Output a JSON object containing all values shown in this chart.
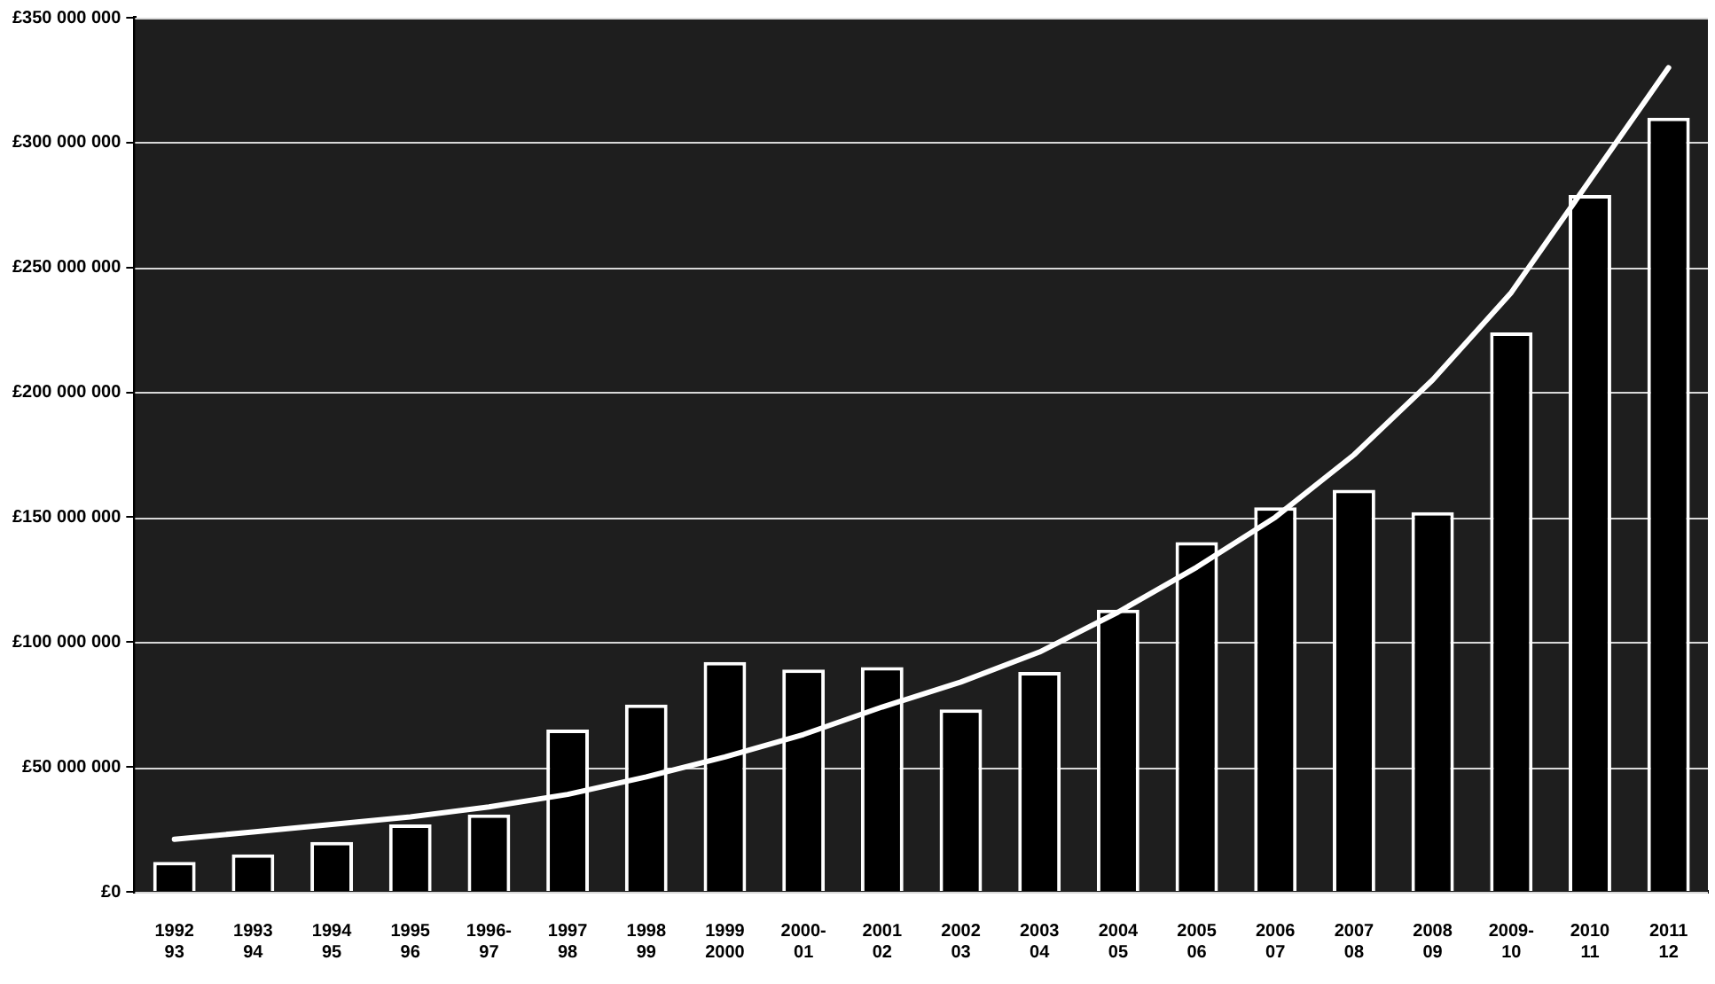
{
  "chart_data": {
    "type": "bar",
    "categories": [
      "1992\n93",
      "1993\n94",
      "1994\n95",
      "1995\n96",
      "1996-\n97",
      "1997\n98",
      "1998\n99",
      "1999\n2000",
      "2000-\n01",
      "2001\n02",
      "2002\n03",
      "2003\n04",
      "2004\n05",
      "2005\n06",
      "2006\n07",
      "2007\n08",
      "2008\n09",
      "2009-\n10",
      "2010\n11",
      "2011\n12"
    ],
    "series": [
      {
        "color": "#000000",
        "values": [
          12000000,
          15000000,
          20000000,
          27000000,
          31000000,
          65000000,
          75000000,
          92000000,
          89000000,
          90000000,
          73000000,
          88000000,
          113000000,
          140000000,
          154000000,
          161000000,
          152000000,
          224000000,
          279000000,
          310000000
        ]
      },
      {
        "type": "line",
        "color": "#ffffff",
        "values": [
          21000000,
          24000000,
          27000000,
          30000000,
          34000000,
          39000000,
          46000000,
          54000000,
          63000000,
          74000000,
          84000000,
          96000000,
          112000000,
          130000000,
          150000000,
          175000000,
          205000000,
          240000000,
          285000000,
          330000000
        ]
      }
    ],
    "ylim": [
      0,
      350000000
    ],
    "yticks": [
      {
        "value": 0,
        "label": "£0"
      },
      {
        "value": 50000000,
        "label": "£50 000 000"
      },
      {
        "value": 100000000,
        "label": "£100 000 000"
      },
      {
        "value": 150000000,
        "label": "£150 000 000"
      },
      {
        "value": 200000000,
        "label": "£200 000 000"
      },
      {
        "value": 250000000,
        "label": "£250 000 000"
      },
      {
        "value": 300000000,
        "label": "£300 000 000"
      },
      {
        "value": 350000000,
        "label": "£350 000 000"
      }
    ],
    "grid": "y",
    "legend": false,
    "marker": "none",
    "line_style": "solid"
  }
}
